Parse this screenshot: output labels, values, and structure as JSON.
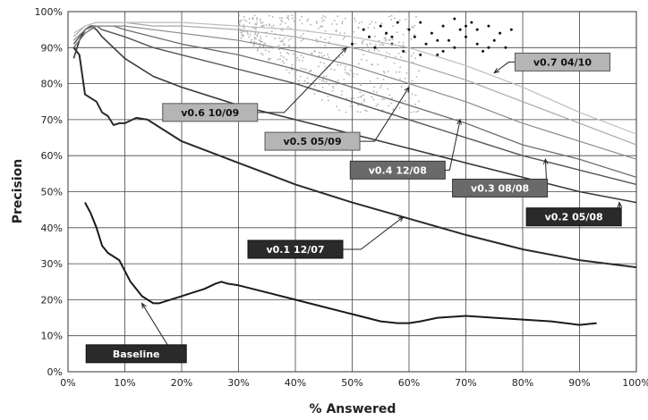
{
  "chart_data": {
    "type": "line",
    "title": "",
    "xlabel": "% Answered",
    "ylabel": "Precision",
    "xlim": [
      0,
      100
    ],
    "ylim": [
      0,
      100
    ],
    "grid": true,
    "x_ticks": [
      "0%",
      "10%",
      "20%",
      "30%",
      "40%",
      "50%",
      "60%",
      "70%",
      "80%",
      "90%",
      "100%"
    ],
    "y_ticks": [
      "0%",
      "10%",
      "20%",
      "30%",
      "40%",
      "50%",
      "60%",
      "70%",
      "80%",
      "90%",
      "100%"
    ],
    "colors": {
      "baseline": "#1a1a1a",
      "v01": "#2a2a2a",
      "v02": "#3a3a3a",
      "v03": "#555555",
      "v04": "#6e6e6e",
      "v05": "#8a8a8a",
      "v06": "#a8a8a8",
      "v07": "#bdbdbd",
      "gray_dots": "#b0b0b0",
      "black_dots": "#111111"
    },
    "series": [
      {
        "key": "baseline",
        "label": "Baseline",
        "label_style": "dark",
        "label_anchor": [
          12,
          5
        ],
        "arrow_to": [
          13,
          19
        ],
        "x": [
          3,
          4,
          5,
          6,
          7,
          8,
          9,
          10,
          11,
          12,
          13,
          14,
          15,
          16,
          17,
          18,
          19,
          20,
          22,
          24,
          26,
          27,
          28,
          30,
          35,
          40,
          45,
          50,
          55,
          58,
          60,
          62,
          65,
          70,
          75,
          80,
          85,
          90,
          93
        ],
        "y": [
          47,
          44,
          40,
          35,
          33,
          32,
          31,
          28,
          25,
          23,
          21,
          20,
          19,
          19,
          19.5,
          20,
          20.5,
          21,
          22,
          23,
          24.5,
          25,
          24.5,
          24,
          22,
          20,
          18,
          16,
          14,
          13.5,
          13.5,
          14,
          15,
          15.5,
          15,
          14.5,
          14,
          13,
          13.5
        ]
      },
      {
        "key": "v01",
        "label": "v0.1  12/07",
        "label_style": "dark",
        "label_anchor": [
          40,
          34
        ],
        "arrow_to": [
          59,
          43
        ],
        "x": [
          1,
          2,
          3,
          4,
          5,
          6,
          7,
          8,
          9,
          10,
          12,
          14,
          16,
          20,
          25,
          30,
          35,
          40,
          50,
          60,
          70,
          80,
          90,
          100
        ],
        "y": [
          90,
          88,
          77,
          76,
          75,
          72,
          71,
          68.5,
          69,
          69,
          70.5,
          70,
          68,
          64,
          61,
          58,
          55,
          52,
          47,
          42.5,
          38,
          34,
          31,
          29
        ]
      },
      {
        "key": "v02",
        "label": "v0.2  05/08",
        "label_style": "dark",
        "label_anchor": [
          89,
          43
        ],
        "arrow_to": [
          97,
          47
        ],
        "x": [
          1,
          2,
          3,
          4,
          5,
          6,
          8,
          10,
          15,
          20,
          30,
          40,
          50,
          60,
          70,
          80,
          90,
          100
        ],
        "y": [
          87,
          92,
          95,
          96,
          95,
          93,
          90,
          87,
          82,
          79,
          74,
          70,
          66,
          62,
          58,
          54,
          50,
          47
        ]
      },
      {
        "key": "v03",
        "label": "v0.3  08/08",
        "label_style": "medium",
        "label_anchor": [
          76,
          51
        ],
        "arrow_to": [
          84,
          59
        ],
        "x": [
          1,
          2,
          3,
          4,
          5,
          6,
          8,
          10,
          15,
          20,
          30,
          40,
          50,
          60,
          70,
          80,
          90,
          100
        ],
        "y": [
          91,
          93,
          95,
          96,
          96,
          95,
          94,
          93,
          90,
          88,
          84,
          80,
          75,
          70,
          65,
          60,
          56,
          52
        ]
      },
      {
        "key": "v04",
        "label": "v0.4  12/08",
        "label_style": "medium",
        "label_anchor": [
          58,
          56
        ],
        "arrow_to": [
          69,
          70
        ],
        "x": [
          1,
          3,
          5,
          8,
          10,
          15,
          20,
          30,
          40,
          50,
          60,
          70,
          80,
          90,
          100
        ],
        "y": [
          90,
          94,
          96,
          96,
          95,
          93,
          91,
          88,
          84,
          79,
          74,
          69,
          63,
          59,
          54
        ]
      },
      {
        "key": "v05",
        "label": "v0.5  05/09",
        "label_style": "light",
        "label_anchor": [
          43,
          64
        ],
        "arrow_to": [
          60,
          79
        ],
        "x": [
          1,
          3,
          5,
          8,
          10,
          15,
          20,
          30,
          40,
          50,
          60,
          70,
          80,
          90,
          100
        ],
        "y": [
          92,
          95,
          96,
          96,
          96,
          95,
          94,
          92,
          89,
          85,
          80,
          75,
          69,
          64,
          59
        ]
      },
      {
        "key": "v06",
        "label": "v0.6  10/09",
        "label_style": "light",
        "label_anchor": [
          25,
          72
        ],
        "arrow_to": [
          49,
          90
        ],
        "x": [
          1,
          3,
          5,
          8,
          10,
          15,
          20,
          30,
          40,
          50,
          60,
          70,
          80,
          90,
          100
        ],
        "y": [
          93,
          96,
          97,
          97,
          97,
          96,
          96,
          95,
          93,
          90,
          86,
          81,
          75,
          69,
          63
        ]
      },
      {
        "key": "v07",
        "label": "v0.7  04/10",
        "label_style": "light",
        "label_anchor": [
          87,
          86
        ],
        "arrow_to": [
          75,
          83
        ],
        "x": [
          1,
          3,
          5,
          8,
          10,
          15,
          20,
          30,
          40,
          50,
          60,
          70,
          80,
          90,
          100
        ],
        "y": [
          94,
          96,
          97,
          97,
          97,
          97,
          97,
          96,
          95,
          93,
          90,
          85,
          79,
          72,
          66
        ]
      }
    ],
    "scatter_series": [
      {
        "key": "gray_dots",
        "label": "",
        "x_range": [
          30,
          62
        ],
        "y_range": [
          72,
          99
        ],
        "count": 460
      },
      {
        "key": "black_dots",
        "label": "",
        "x_range": [
          48,
          78
        ],
        "y_range": [
          84,
          98
        ],
        "points": [
          [
            52,
            95
          ],
          [
            53,
            93
          ],
          [
            54,
            90
          ],
          [
            55,
            96
          ],
          [
            56,
            94
          ],
          [
            57,
            91
          ],
          [
            58,
            97
          ],
          [
            59,
            89
          ],
          [
            60,
            95
          ],
          [
            61,
            93
          ],
          [
            62,
            97
          ],
          [
            63,
            91
          ],
          [
            64,
            94
          ],
          [
            65,
            88
          ],
          [
            66,
            96
          ],
          [
            67,
            92
          ],
          [
            68,
            90
          ],
          [
            69,
            95
          ],
          [
            70,
            93
          ],
          [
            71,
            97
          ],
          [
            72,
            91
          ],
          [
            72,
            95
          ],
          [
            73,
            89
          ],
          [
            74,
            96
          ],
          [
            75,
            92
          ],
          [
            76,
            94
          ],
          [
            77,
            90
          ],
          [
            78,
            95
          ],
          [
            62,
            88
          ],
          [
            65,
            92
          ],
          [
            68,
            98
          ],
          [
            57,
            93
          ],
          [
            50,
            91
          ],
          [
            74,
            90
          ],
          [
            66,
            89
          ],
          [
            70,
            96
          ]
        ]
      }
    ]
  }
}
